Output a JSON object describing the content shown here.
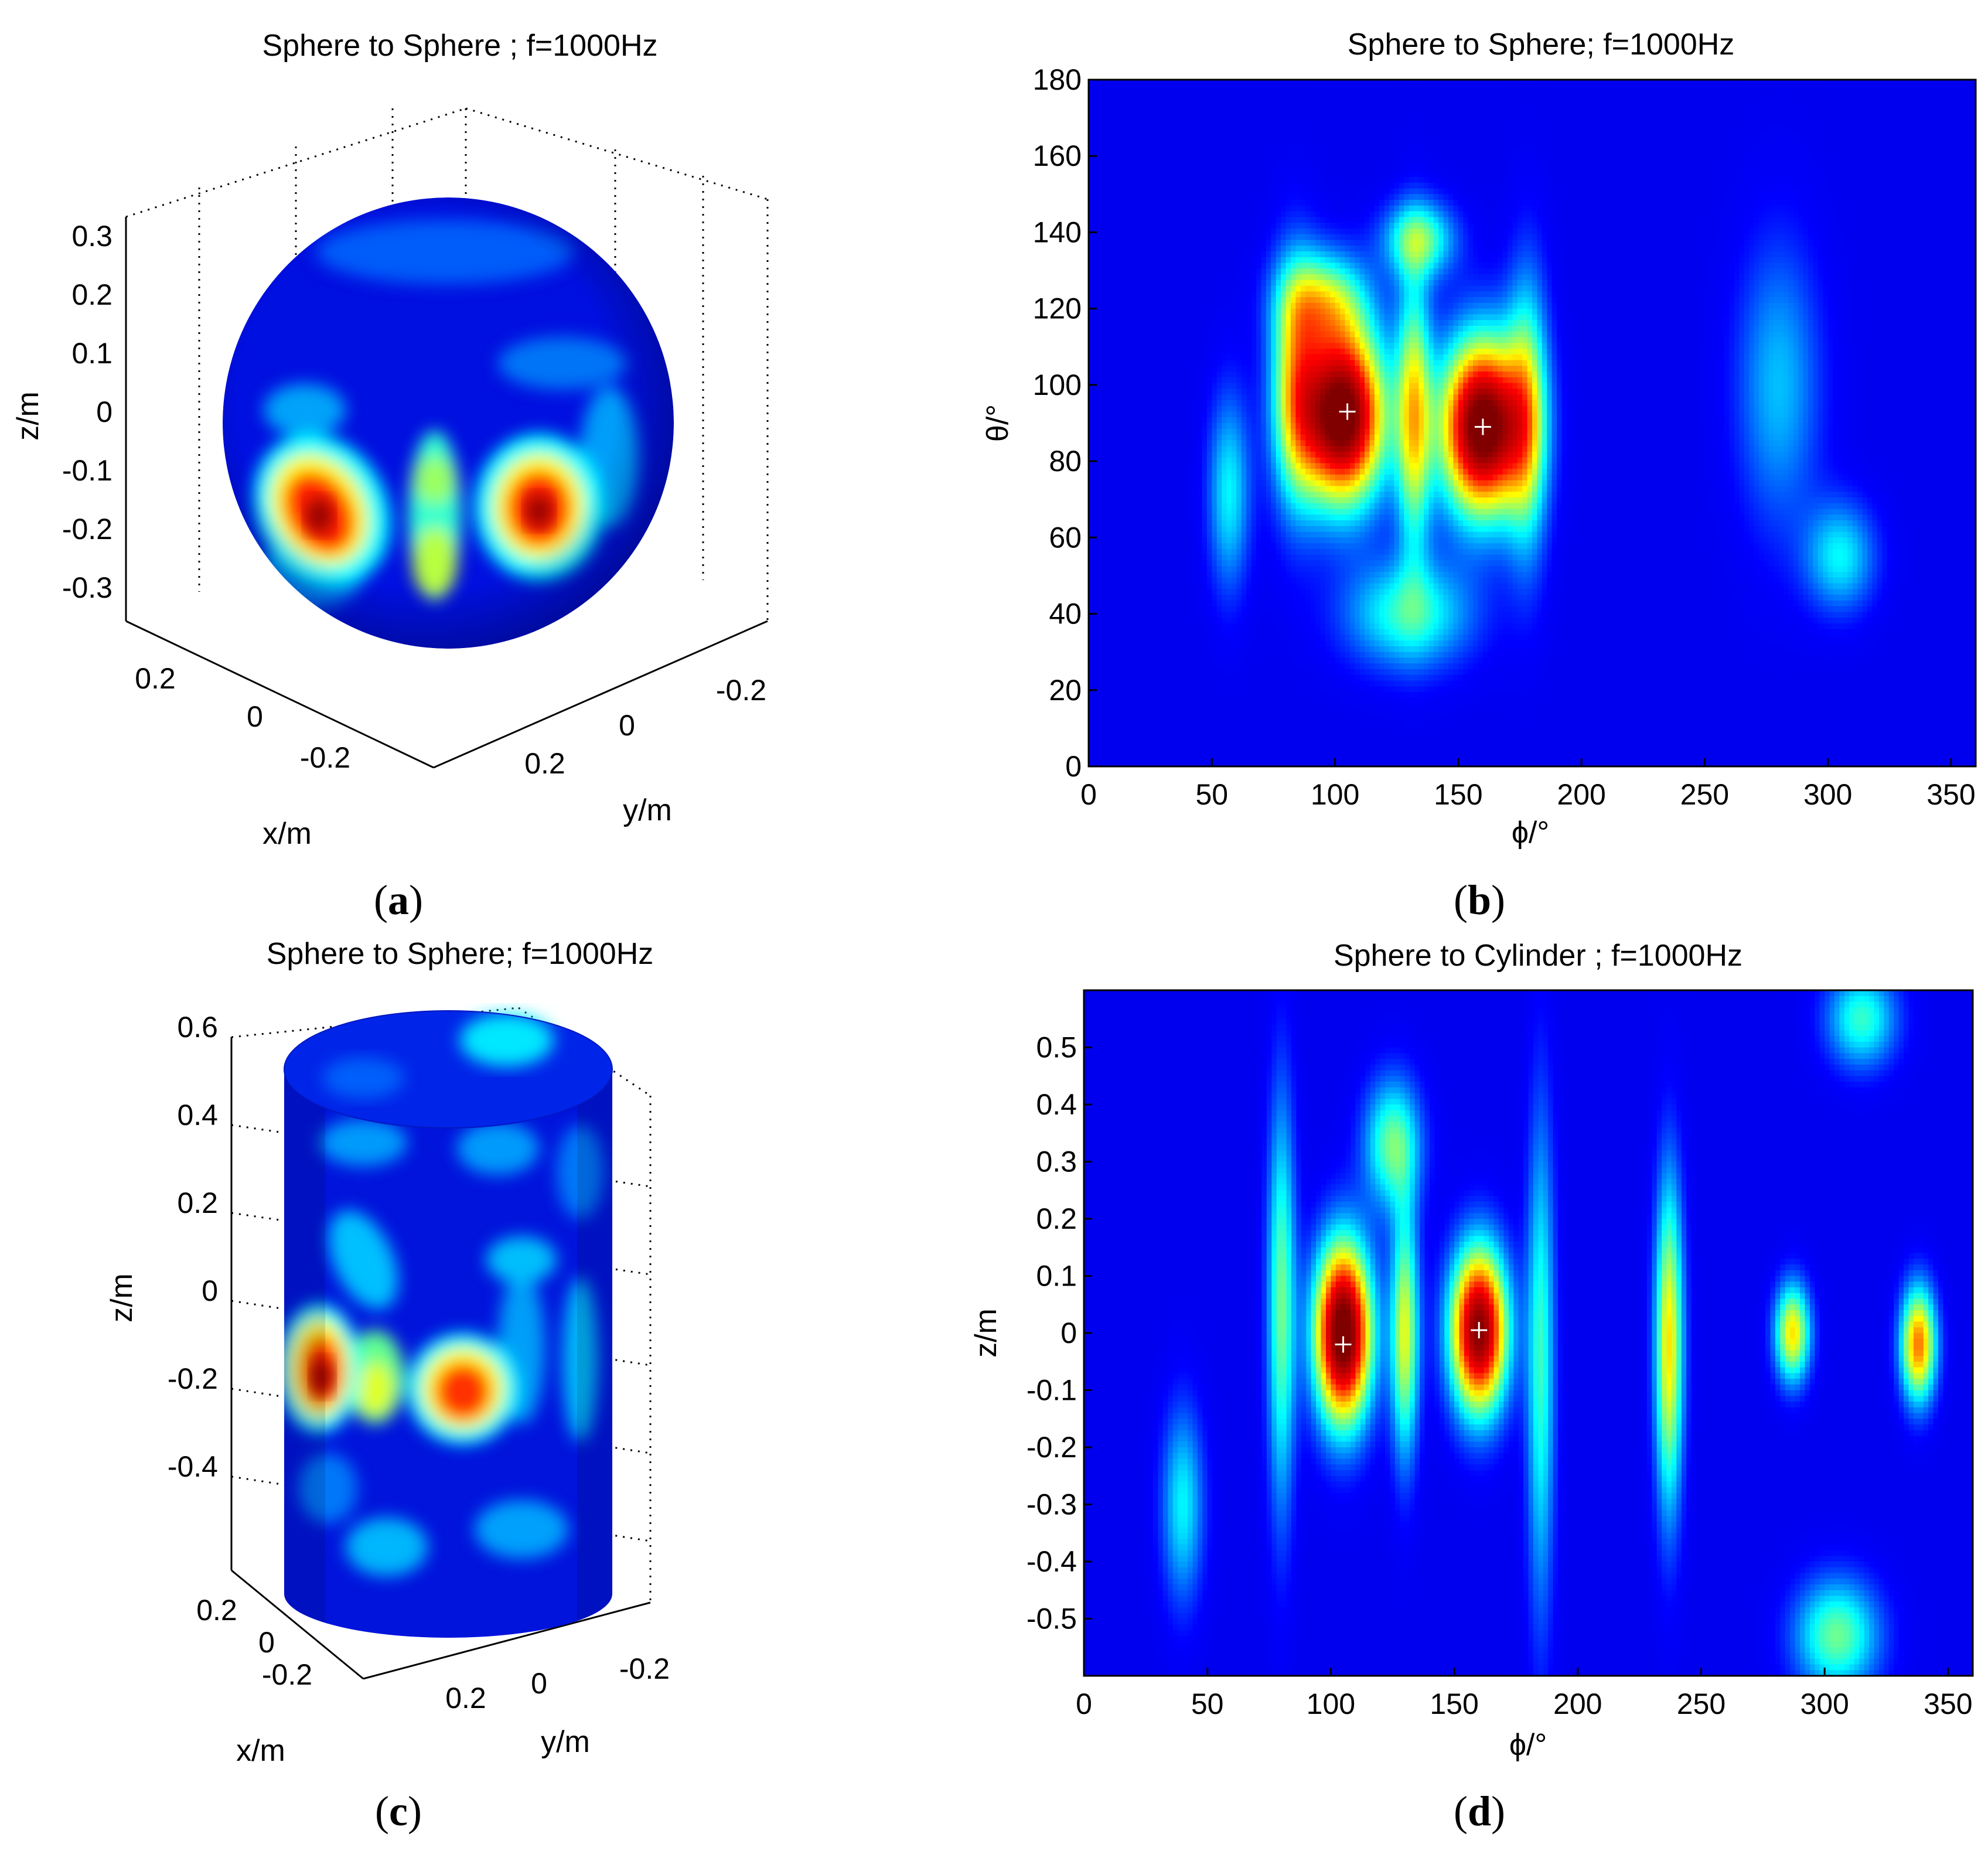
{
  "colormap": [
    "#00008f",
    "#0000ff",
    "#00ffff",
    "#ffff00",
    "#ff0000",
    "#800000"
  ],
  "chart_data": [
    {
      "panel": "a",
      "caption_letter": "a",
      "type": "heatmap",
      "projection": "sphere-3d",
      "title": "Sphere to Sphere ; f=1000Hz",
      "xlabel": "x/m",
      "ylabel": "y/m",
      "zlabel": "z/m",
      "z_ticks": [
        "0.3",
        "0.2",
        "0.1",
        "0",
        "-0.1",
        "-0.2",
        "-0.3"
      ],
      "x_ticks": [
        "0.2",
        "0",
        "-0.2"
      ],
      "y_ticks": [
        "-0.2",
        "0",
        "0.2"
      ],
      "zlim": [
        -0.35,
        0.35
      ],
      "grid": true
    },
    {
      "panel": "b",
      "caption_letter": "b",
      "type": "heatmap",
      "title": "Sphere to Sphere; f=1000Hz",
      "xlabel": "ϕ/°",
      "ylabel": "θ/°",
      "xlim": [
        0,
        360
      ],
      "ylim": [
        0,
        180
      ],
      "x_ticks": [
        "0",
        "50",
        "100",
        "150",
        "200",
        "250",
        "300",
        "350"
      ],
      "y_ticks": [
        "0",
        "20",
        "40",
        "60",
        "80",
        "100",
        "120",
        "140",
        "160",
        "180"
      ],
      "markers": [
        {
          "x": 105,
          "y": 93
        },
        {
          "x": 160,
          "y": 89
        }
      ],
      "hotspots": [
        {
          "x": 103,
          "y": 92,
          "level": 1.0,
          "sx": 12,
          "sy": 16
        },
        {
          "x": 160,
          "y": 89,
          "level": 1.0,
          "sx": 12,
          "sy": 16
        },
        {
          "x": 132,
          "y": 92,
          "level": 0.45,
          "sx": 5,
          "sy": 25
        },
        {
          "x": 84,
          "y": 100,
          "level": 0.4,
          "sx": 7,
          "sy": 22
        },
        {
          "x": 178,
          "y": 92,
          "level": 0.35,
          "sx": 6,
          "sy": 26
        },
        {
          "x": 95,
          "y": 122,
          "level": 0.35,
          "sx": 12,
          "sy": 9
        },
        {
          "x": 134,
          "y": 138,
          "level": 0.35,
          "sx": 10,
          "sy": 7
        },
        {
          "x": 130,
          "y": 40,
          "level": 0.3,
          "sx": 18,
          "sy": 10
        },
        {
          "x": 57,
          "y": 72,
          "level": 0.25,
          "sx": 6,
          "sy": 18
        },
        {
          "x": 305,
          "y": 55,
          "level": 0.25,
          "sx": 10,
          "sy": 10
        },
        {
          "x": 280,
          "y": 100,
          "level": 0.2,
          "sx": 12,
          "sy": 26
        }
      ]
    },
    {
      "panel": "c",
      "caption_letter": "c",
      "type": "heatmap",
      "projection": "cylinder-3d",
      "title": "Sphere to Sphere; f=1000Hz",
      "xlabel": "x/m",
      "ylabel": "y/m",
      "zlabel": "z/m",
      "z_ticks": [
        "0.6",
        "0.4",
        "0.2",
        "0",
        "-0.2",
        "-0.4"
      ],
      "x_ticks": [
        "0.2",
        "0",
        "-0.2"
      ],
      "y_ticks": [
        "0.2",
        "0",
        "-0.2"
      ],
      "zlim": [
        -0.6,
        0.6
      ],
      "grid": true
    },
    {
      "panel": "d",
      "caption_letter": "d",
      "type": "heatmap",
      "title": "Sphere to Cylinder ; f=1000Hz",
      "xlabel": "ϕ/°",
      "ylabel": "z/m",
      "xlim": [
        0,
        360
      ],
      "ylim": [
        -0.6,
        0.6
      ],
      "x_ticks": [
        "0",
        "50",
        "100",
        "150",
        "200",
        "250",
        "300",
        "350"
      ],
      "y_ticks": [
        "0.5",
        "0.4",
        "0.3",
        "0.2",
        "0.1",
        "0",
        "-0.1",
        "-0.2",
        "-0.3",
        "-0.4",
        "-0.5"
      ],
      "markers": [
        {
          "x": 105,
          "y": -0.02
        },
        {
          "x": 160,
          "y": 0.005
        }
      ],
      "hotspots": [
        {
          "x": 105,
          "y": 0.0,
          "level": 1.0,
          "sx": 8,
          "sy": 0.11
        },
        {
          "x": 160,
          "y": 0.005,
          "level": 0.92,
          "sx": 8,
          "sy": 0.1
        },
        {
          "x": 130,
          "y": 0.0,
          "level": 0.45,
          "sx": 4,
          "sy": 0.15
        },
        {
          "x": 237,
          "y": -0.02,
          "level": 0.5,
          "sx": 4,
          "sy": 0.2
        },
        {
          "x": 287,
          "y": 0.0,
          "level": 0.5,
          "sx": 5,
          "sy": 0.06
        },
        {
          "x": 338,
          "y": -0.02,
          "level": 0.6,
          "sx": 5,
          "sy": 0.07
        },
        {
          "x": 80,
          "y": 0.05,
          "level": 0.35,
          "sx": 4,
          "sy": 0.25
        },
        {
          "x": 125,
          "y": 0.33,
          "level": 0.35,
          "sx": 8,
          "sy": 0.08
        },
        {
          "x": 305,
          "y": -0.53,
          "level": 0.35,
          "sx": 12,
          "sy": 0.07
        },
        {
          "x": 315,
          "y": 0.55,
          "level": 0.3,
          "sx": 10,
          "sy": 0.06
        },
        {
          "x": 185,
          "y": -0.05,
          "level": 0.3,
          "sx": 4,
          "sy": 0.3
        },
        {
          "x": 40,
          "y": -0.3,
          "level": 0.25,
          "sx": 6,
          "sy": 0.12
        }
      ]
    }
  ]
}
